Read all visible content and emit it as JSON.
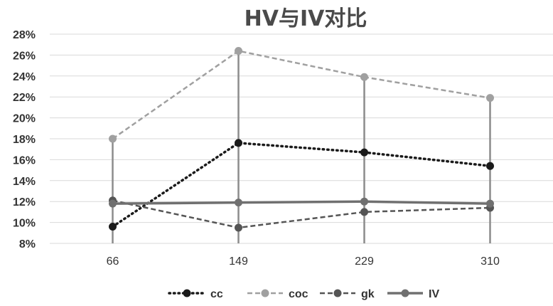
{
  "chart_data": {
    "type": "line",
    "title": "HV与IV对比",
    "xlabel": "",
    "ylabel": "",
    "categories": [
      "66",
      "149",
      "229",
      "310"
    ],
    "y_axis": {
      "min": 0.08,
      "max": 0.28,
      "step": 0.02,
      "tick_labels": [
        "8%",
        "10%",
        "12%",
        "14%",
        "16%",
        "18%",
        "20%",
        "22%",
        "24%",
        "26%",
        "28%"
      ]
    },
    "grid": "horizontal",
    "legend_position": "bottom",
    "series": [
      {
        "name": "cc",
        "values": [
          0.096,
          0.176,
          0.167,
          0.154
        ],
        "color": "#1a1a1a",
        "style": "dotted"
      },
      {
        "name": "coc",
        "values": [
          0.18,
          0.264,
          0.239,
          0.219
        ],
        "color": "#a0a0a0",
        "style": "dashed"
      },
      {
        "name": "gk",
        "values": [
          0.121,
          0.095,
          0.11,
          0.114
        ],
        "color": "#555555",
        "style": "dashed"
      },
      {
        "name": "IV",
        "values": [
          0.118,
          0.119,
          0.12,
          0.118
        ],
        "color": "#707070",
        "style": "solid"
      }
    ]
  }
}
